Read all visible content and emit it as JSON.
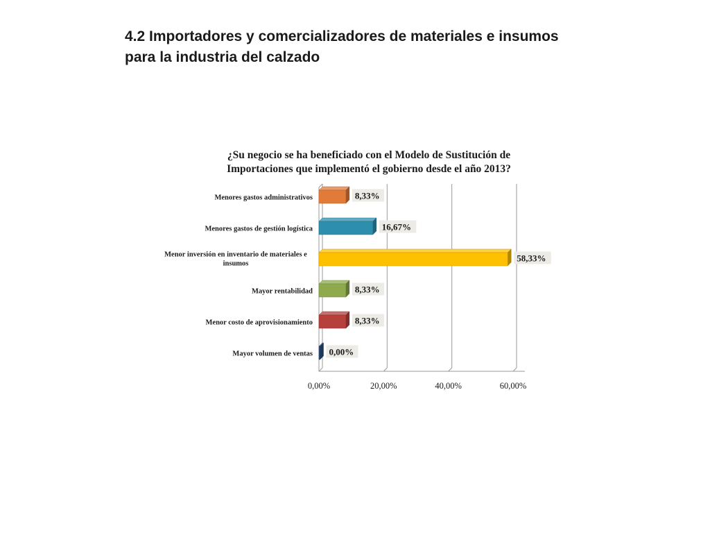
{
  "slide": {
    "title_line1": "4.2 Importadores y comercializadores de materiales e insumos",
    "title_line2": "para la industria del calzado"
  },
  "chart_data": {
    "type": "bar",
    "orientation": "horizontal",
    "title_lines": [
      "¿Su negocio se ha beneficiado con el Modelo de Sustitución de",
      "Importaciones que implementó el gobierno desde  el año 2013?"
    ],
    "categories": [
      [
        "Menores gastos administrativos"
      ],
      [
        "Menores gastos de gestión logística"
      ],
      [
        "Menor inversión en inventario de materiales e",
        "insumos"
      ],
      [
        "Mayor rentabilidad"
      ],
      [
        "Menor costo de aprovisionamiento"
      ],
      [
        "Mayor volumen de ventas"
      ]
    ],
    "values": [
      8.33,
      16.67,
      58.33,
      8.33,
      8.33,
      0.0
    ],
    "data_labels": [
      "8,33%",
      "16,67%",
      "58,33%",
      "8,33%",
      "8,33%",
      "0,00%"
    ],
    "colors": [
      "#E07B39",
      "#2E8EAE",
      "#FFC000",
      "#8EAA4C",
      "#B5403C",
      "#2C4F7C"
    ],
    "x_ticks": [
      0,
      20,
      40,
      60
    ],
    "x_tick_labels": [
      "0,00%",
      "20,00%",
      "40,00%",
      "60,00%"
    ],
    "xlim": [
      0,
      60
    ],
    "grid": true,
    "legend": "none"
  }
}
